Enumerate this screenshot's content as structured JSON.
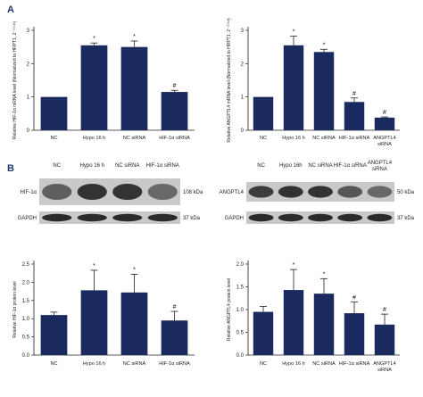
{
  "panels": {
    "a": "A",
    "b": "B"
  },
  "chart_data": [
    {
      "id": "chart-hif-mrna",
      "type": "bar",
      "categories": [
        "NC",
        "Hypo 16 h",
        "NC siRNA",
        "HIF-1α siRNA"
      ],
      "values": [
        1.0,
        2.55,
        2.5,
        1.15
      ],
      "errors": [
        0,
        0.07,
        0.18,
        0.05
      ],
      "annotations": [
        "",
        "*",
        "*",
        "#"
      ],
      "ylabel": "Relative HIF-1α mRNA level (Normalized to HRPT1, 2⁻ᐞᐞᶜᵗ)",
      "ylim": [
        0,
        3
      ],
      "yticks": [
        0,
        1,
        2,
        3
      ],
      "color": "#1b2a5e"
    },
    {
      "id": "chart-angptl4-mrna",
      "type": "bar",
      "categories": [
        "NC",
        "Hypo 16 h",
        "NC siRNA",
        "HIF-1α siRNA",
        "ANGPTL4 siRNA"
      ],
      "values": [
        1.0,
        2.55,
        2.35,
        0.85,
        0.38
      ],
      "errors": [
        0,
        0.28,
        0.08,
        0.12,
        0.02
      ],
      "annotations": [
        "",
        "*",
        "*",
        "#",
        "#"
      ],
      "ylabel": "Relative ANGPTL4 mRNA level (Normalized to HRPT1, 2⁻ᐞᐞᶜᵗ)",
      "ylim": [
        0,
        3
      ],
      "yticks": [
        0,
        1,
        2,
        3
      ],
      "color": "#1b2a5e"
    },
    {
      "id": "chart-hif-protein",
      "type": "bar",
      "categories": [
        "NC",
        "Hypo 16 h",
        "NC siRNA",
        "HIF-1α siRNA"
      ],
      "values": [
        1.1,
        1.78,
        1.72,
        0.95
      ],
      "errors": [
        0.08,
        0.55,
        0.5,
        0.25
      ],
      "annotations": [
        "",
        "*",
        "*",
        "#"
      ],
      "ylabel": "Relative HIF-1α protein level",
      "ylim": [
        0,
        2.5
      ],
      "yticks": [
        0,
        0.5,
        1.0,
        1.5,
        2.0,
        2.5
      ],
      "color": "#1b2a5e"
    },
    {
      "id": "chart-angptl4-protein",
      "type": "bar",
      "categories": [
        "NC",
        "Hypo 16 h",
        "NC siRNA",
        "HIF-1α siRNA",
        "ANGPTL4 siRNA"
      ],
      "values": [
        0.95,
        1.43,
        1.35,
        0.92,
        0.67
      ],
      "errors": [
        0.12,
        0.45,
        0.33,
        0.25,
        0.23
      ],
      "annotations": [
        "",
        "*",
        "*",
        "#",
        "#"
      ],
      "ylabel": "Relative ANGPTL4 protein level",
      "ylim": [
        0,
        2.0
      ],
      "yticks": [
        0,
        0.5,
        1.0,
        1.5,
        2.0
      ],
      "color": "#1b2a5e"
    }
  ],
  "blots": {
    "left": {
      "lanes": [
        "NC",
        "Hypo 16 h",
        "NC siRNA",
        "HIF-1α siRNA"
      ],
      "rows": [
        {
          "protein": "HIF-1α",
          "size": "108 kDa",
          "intensity": [
            0.6,
            0.85,
            0.85,
            0.55
          ]
        },
        {
          "protein": "GAPDH",
          "size": "37 kDa",
          "intensity": [
            0.9,
            0.9,
            0.9,
            0.9
          ]
        }
      ]
    },
    "right": {
      "lanes": [
        "NC",
        "Hypo 16h",
        "NC siRNA",
        "HIF-1α siRNA",
        "ANGPTL4 siRNA"
      ],
      "rows": [
        {
          "protein": "ANGPTL4",
          "size": "50 kDa",
          "intensity": [
            0.8,
            0.85,
            0.85,
            0.65,
            0.55
          ]
        },
        {
          "protein": "GAPDH",
          "size": "37 kDa",
          "intensity": [
            0.9,
            0.9,
            0.9,
            0.9,
            0.9
          ]
        }
      ]
    }
  }
}
